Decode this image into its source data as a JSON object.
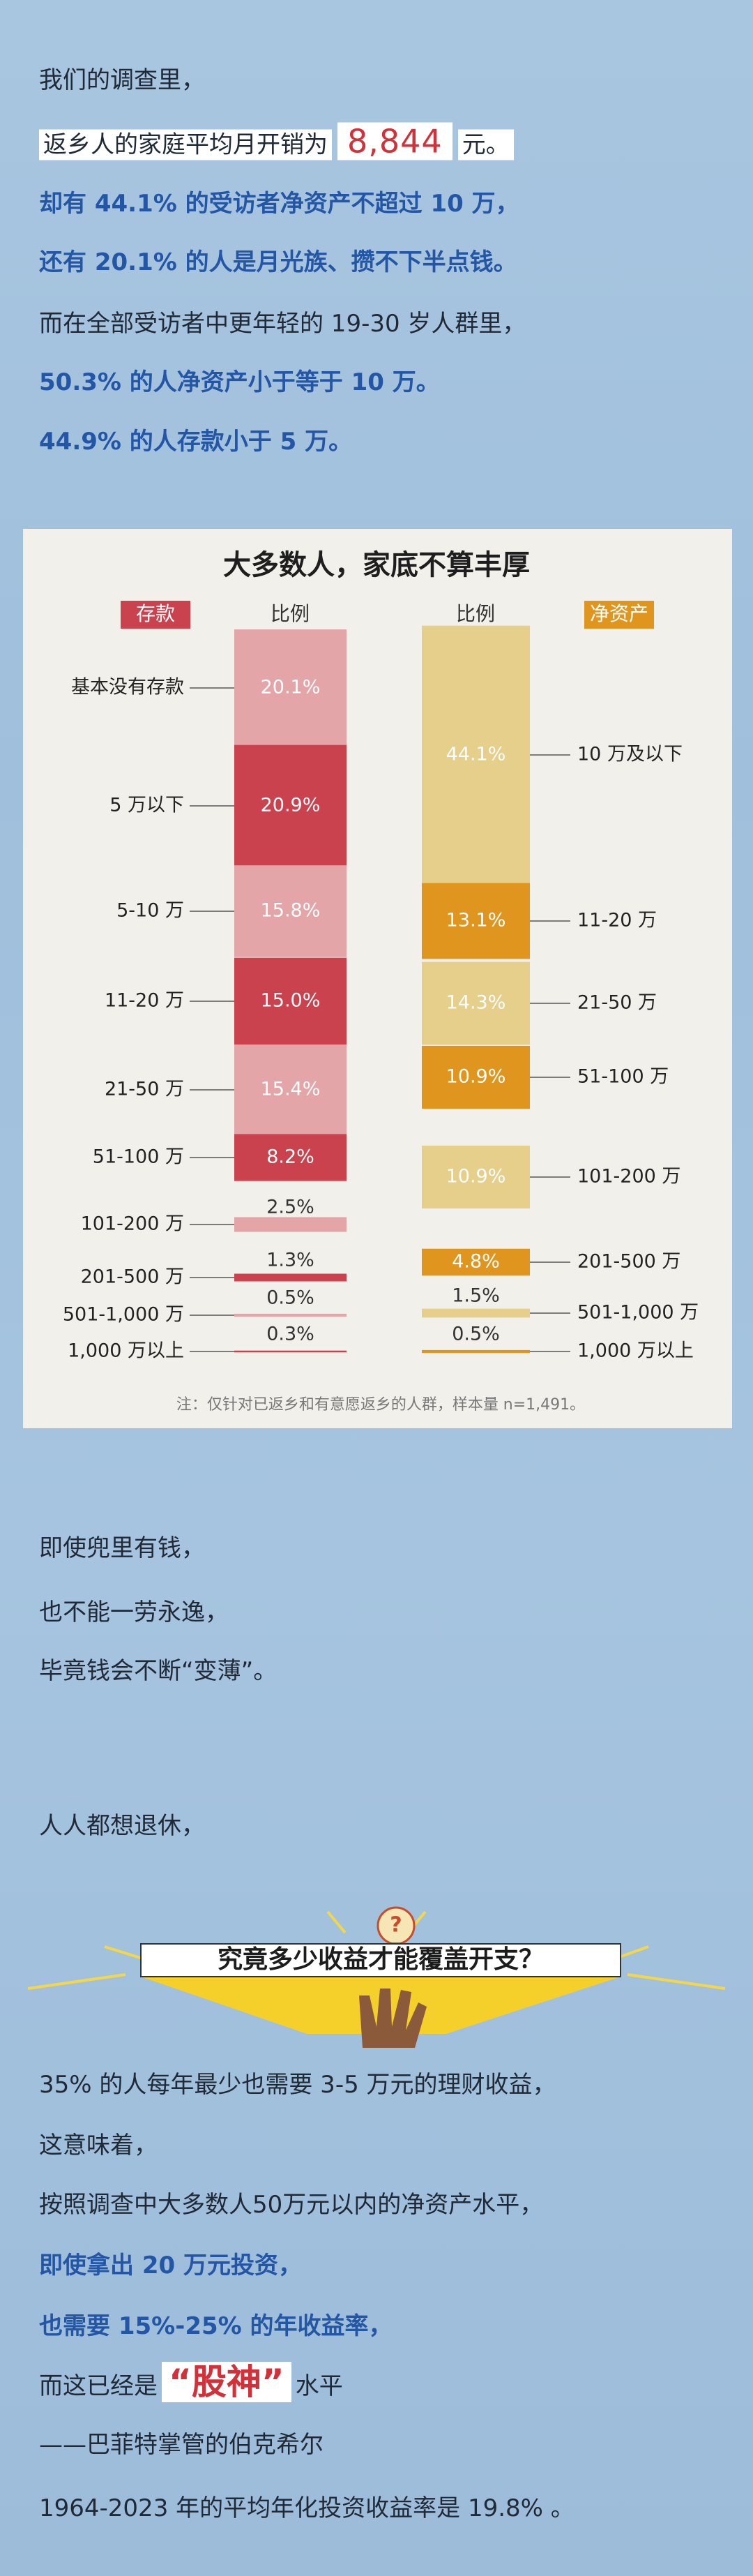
{
  "intro": "我们的调查里，",
  "spending": {
    "prefix": "返乡人的家庭平均月开销为",
    "amount": "8,844",
    "suffix": "元。"
  },
  "findings": [
    "却有 44.1% 的受访者净资产不超过 10 万，",
    "还有 20.1% 的人是月光族、攒不下半点钱。",
    "而在全部受访者中更年轻的 19-30 岁人群里，",
    "50.3% 的人净资产小于等于 10 万。",
    "44.9% 的人存款小于 5 万。"
  ],
  "chart_data": {
    "type": "bar",
    "title": "大多数人，家底不算丰厚",
    "note": "注：仅针对已返乡和有意愿返乡的人群，样本量 n=1,491。",
    "series": [
      {
        "name": "存款",
        "column_label": "比例",
        "colors": [
          "#e4a5a9",
          "#c9424d"
        ],
        "name_color": "#c9424d",
        "categories": [
          "基本没有存款",
          "5 万以下",
          "5-10 万",
          "11-20 万",
          "21-50 万",
          "51-100 万",
          "101-200 万",
          "201-500 万",
          "501-1,000 万",
          "1,000 万以上"
        ],
        "values": [
          20.1,
          20.9,
          15.8,
          15.0,
          15.4,
          8.2,
          2.5,
          1.3,
          0.5,
          0.3
        ],
        "value_labels": [
          "20.1%",
          "20.9%",
          "15.8%",
          "15.0%",
          "15.4%",
          "8.2%",
          "2.5%",
          "1.3%",
          "0.5%",
          "0.3%"
        ]
      },
      {
        "name": "净资产",
        "column_label": "比例",
        "colors": [
          "#e6cf8b",
          "#e0951e"
        ],
        "name_color": "#e0951e",
        "categories": [
          "10 万及以下",
          "11-20 万",
          "21-50 万",
          "51-100 万",
          "101-200 万",
          "201-500 万",
          "501-1,000 万",
          "1,000 万以上"
        ],
        "values": [
          44.1,
          13.1,
          14.3,
          10.9,
          10.9,
          4.8,
          1.5,
          0.5
        ],
        "value_labels": [
          "44.1%",
          "13.1%",
          "14.3%",
          "10.9%",
          "10.9%",
          "4.8%",
          "1.5%",
          "0.5%"
        ]
      }
    ]
  },
  "transition": [
    "即使兜里有钱，",
    "也不能一劳永逸，",
    "毕竟钱会不断“变薄”。"
  ],
  "retire": "人人都想退休，",
  "banner": "究竟多少收益才能覆盖开支？",
  "conclusion": [
    "35% 的人每年最少也需要 3-5 万元的理财收益，",
    "这意味着，",
    "按照调查中大多数人50万元以内的净资产水平，",
    "即使拿出 20 万元投资，",
    "也需要 15%-25% 的年收益率，"
  ],
  "god": {
    "prefix": "而这已经是",
    "highlight": "“股神”",
    "suffix": "水平"
  },
  "closing": [
    "——巴菲特掌管的伯克希尔",
    "1964-2023 年的平均年化投资收益率是 19.8% 。"
  ]
}
